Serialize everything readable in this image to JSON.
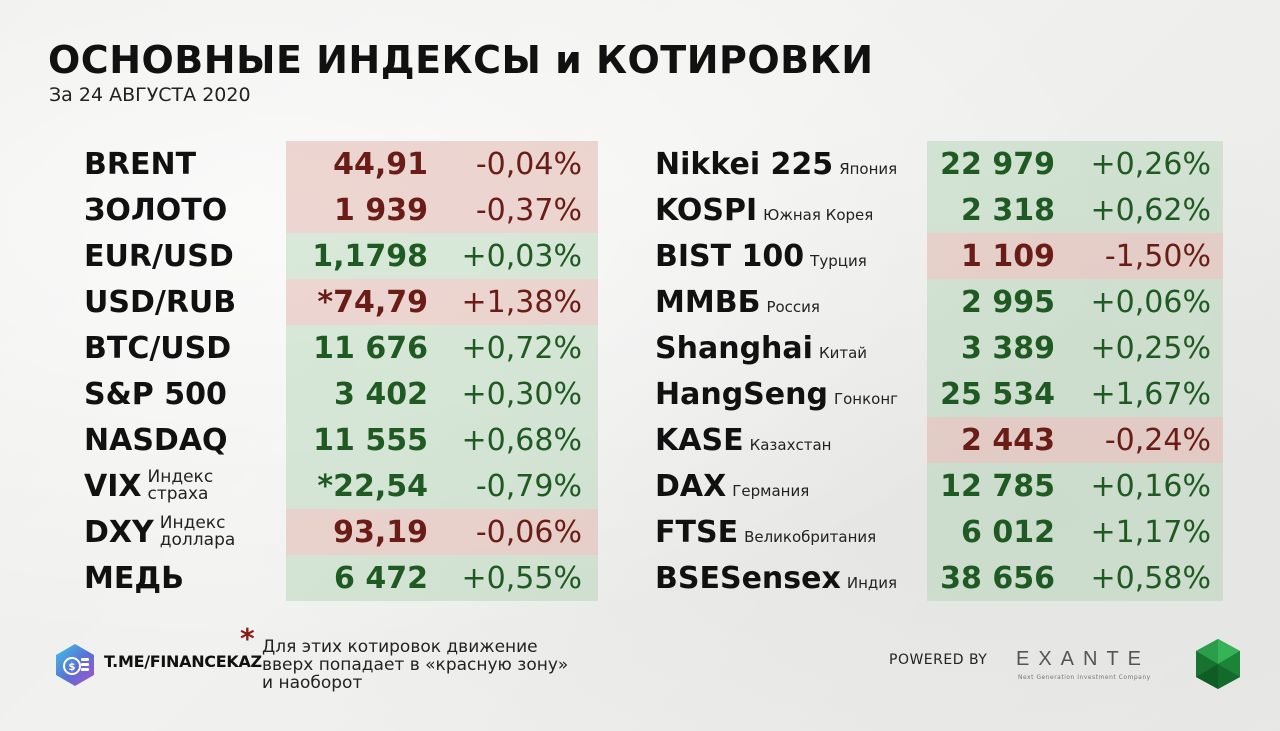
{
  "header": {
    "title": "ОСНОВНЫЕ ИНДЕКСЫ и КОТИРОВКИ",
    "subtitle": "За 24 АВГУСТА 2020"
  },
  "left": [
    {
      "name": "BRENT",
      "desc": "",
      "value": "44,91",
      "change": "-0,04%",
      "trend": "red"
    },
    {
      "name": "ЗОЛОТО",
      "desc": "",
      "value": "1 939",
      "change": "-0,37%",
      "trend": "red"
    },
    {
      "name": "EUR/USD",
      "desc": "",
      "value": "1,1798",
      "change": "+0,03%",
      "trend": "green"
    },
    {
      "name": "USD/RUB",
      "desc": "",
      "value": "*74,79",
      "change": "+1,38%",
      "trend": "red"
    },
    {
      "name": "BTC/USD",
      "desc": "",
      "value": "11 676",
      "change": "+0,72%",
      "trend": "green"
    },
    {
      "name": "S&P 500",
      "desc": "",
      "value": "3 402",
      "change": "+0,30%",
      "trend": "green"
    },
    {
      "name": "NASDAQ",
      "desc": "",
      "value": "11 555",
      "change": "+0,68%",
      "trend": "green"
    },
    {
      "name": "VIX",
      "desc1": "Индекс",
      "desc2": "страха",
      "value": "*22,54",
      "change": "-0,79%",
      "trend": "green"
    },
    {
      "name": "DXY",
      "desc1": "Индекс",
      "desc2": "доллара",
      "value": "93,19",
      "change": "-0,06%",
      "trend": "red"
    },
    {
      "name": "МЕДЬ",
      "desc": "",
      "value": "6 472",
      "change": "+0,55%",
      "trend": "green"
    }
  ],
  "right": [
    {
      "name": "Nikkei 225",
      "desc": "Япония",
      "value": "22 979",
      "change": "+0,26%",
      "trend": "green"
    },
    {
      "name": "KOSPI",
      "desc": "Южная Корея",
      "value": "2 318",
      "change": "+0,62%",
      "trend": "green"
    },
    {
      "name": "BIST 100",
      "desc": "Турция",
      "value": "1 109",
      "change": "-1,50%",
      "trend": "red"
    },
    {
      "name": "ММВБ",
      "desc": "Россия",
      "value": "2 995",
      "change": "+0,06%",
      "trend": "green"
    },
    {
      "name": "Shanghai",
      "desc": "Китай",
      "value": "3 389",
      "change": "+0,25%",
      "trend": "green"
    },
    {
      "name": "HangSeng",
      "desc": "Гонконг",
      "value": "25 534",
      "change": "+1,67%",
      "trend": "green"
    },
    {
      "name": "KASE",
      "desc": "Казахстан",
      "value": "2 443",
      "change": "-0,24%",
      "trend": "red"
    },
    {
      "name": "DAX",
      "desc": "Германия",
      "value": "12 785",
      "change": "+0,16%",
      "trend": "green"
    },
    {
      "name": "FTSE",
      "desc": "Великобритания",
      "value": "6 012",
      "change": "+1,17%",
      "trend": "green"
    },
    {
      "name": "BSESensex",
      "desc": "Индия",
      "value": "38 656",
      "change": "+0,58%",
      "trend": "green"
    }
  ],
  "footer": {
    "link": "T.ME/FINANCEKAZ",
    "asterisk": "*",
    "note_line1": "Для этих котировок движение",
    "note_line2": "вверх попадает в «красную зону»",
    "note_line3": "и наоборот",
    "powered_by": "POWERED BY",
    "brand": "EXANTE",
    "brand_tagline": "Next Generation Investment Company"
  },
  "colors": {
    "green_bg": "#b0d2b2",
    "red_bg": "#dea8a0",
    "green_text": "#1f5a22",
    "red_text": "#6a1c17",
    "asterisk": "#8a1b14"
  },
  "icons": {
    "channel_logo": "coin-stack-icon",
    "brand_logo": "emerald-gem-icon"
  }
}
